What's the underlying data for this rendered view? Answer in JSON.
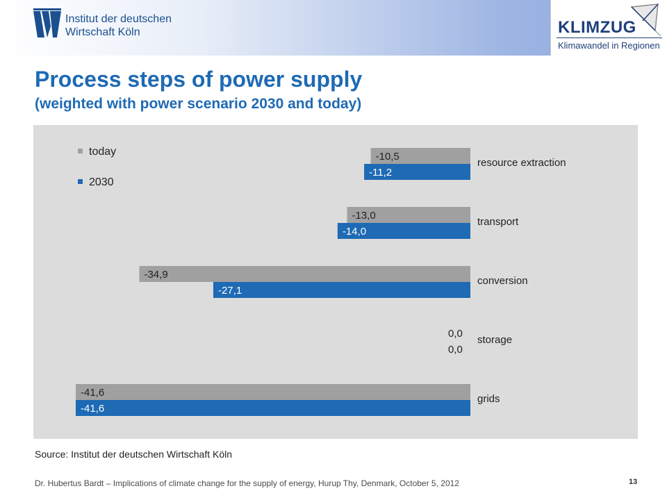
{
  "header": {
    "institute_line1": "Institut der deutschen",
    "institute_line2": "Wirtschaft Köln",
    "partner_logo": "KLIMZUG",
    "partner_tagline": "Klimawandel in Regionen"
  },
  "slide": {
    "title": "Process steps of power supply",
    "subtitle": "(weighted with power scenario 2030 and today)",
    "source": "Source: Institut der deutschen Wirtschaft Köln",
    "footer": "Dr. Hubertus Bardt – Implications of climate change for the supply of energy, Hurup Thy, Denmark, October 5, 2012",
    "page_number": "13"
  },
  "chart_data": {
    "type": "bar",
    "orientation": "horizontal",
    "categories": [
      "resource extraction",
      "transport",
      "conversion",
      "storage",
      "grids"
    ],
    "series": [
      {
        "name": "today",
        "color": "#a0a0a0",
        "values": [
          -10.5,
          -13.0,
          -34.9,
          0.0,
          -41.6
        ],
        "labels": [
          "-10,5",
          "-13,0",
          "-34,9",
          "0,0",
          "-41,6"
        ]
      },
      {
        "name": "2030",
        "color": "#1e6ab4",
        "values": [
          -11.2,
          -14.0,
          -27.1,
          0.0,
          -41.6
        ],
        "labels": [
          "-11,2",
          "-14,0",
          "-27,1",
          "0,0",
          "-41,6"
        ]
      }
    ],
    "xlim": [
      -41.6,
      0
    ],
    "legend_position": "top-left",
    "grid": false
  }
}
